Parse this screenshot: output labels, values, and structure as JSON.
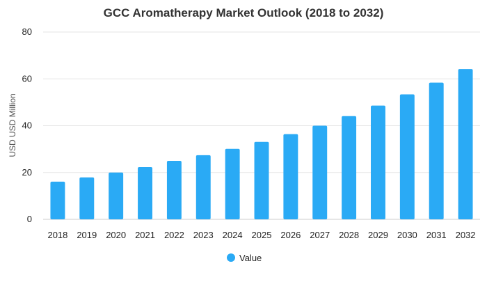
{
  "chart_data": {
    "type": "bar",
    "title": "GCC Aromatherapy Market Outlook (2018 to 2032)",
    "xlabel": "",
    "ylabel": "USD USD Million",
    "categories": [
      "2018",
      "2019",
      "2020",
      "2021",
      "2022",
      "2023",
      "2024",
      "2025",
      "2026",
      "2027",
      "2028",
      "2029",
      "2030",
      "2031",
      "2032"
    ],
    "series": [
      {
        "name": "Value",
        "color": "#2aaaf5",
        "values": [
          16.1,
          17.9,
          20.0,
          22.3,
          25.0,
          27.4,
          30.1,
          33.1,
          36.4,
          40.0,
          44.1,
          48.6,
          53.4,
          58.4,
          64.2
        ]
      }
    ],
    "ylim": [
      0,
      80
    ],
    "yticks": [
      0,
      20,
      40,
      60,
      80
    ],
    "grid": true,
    "legend": "bottom-center"
  }
}
